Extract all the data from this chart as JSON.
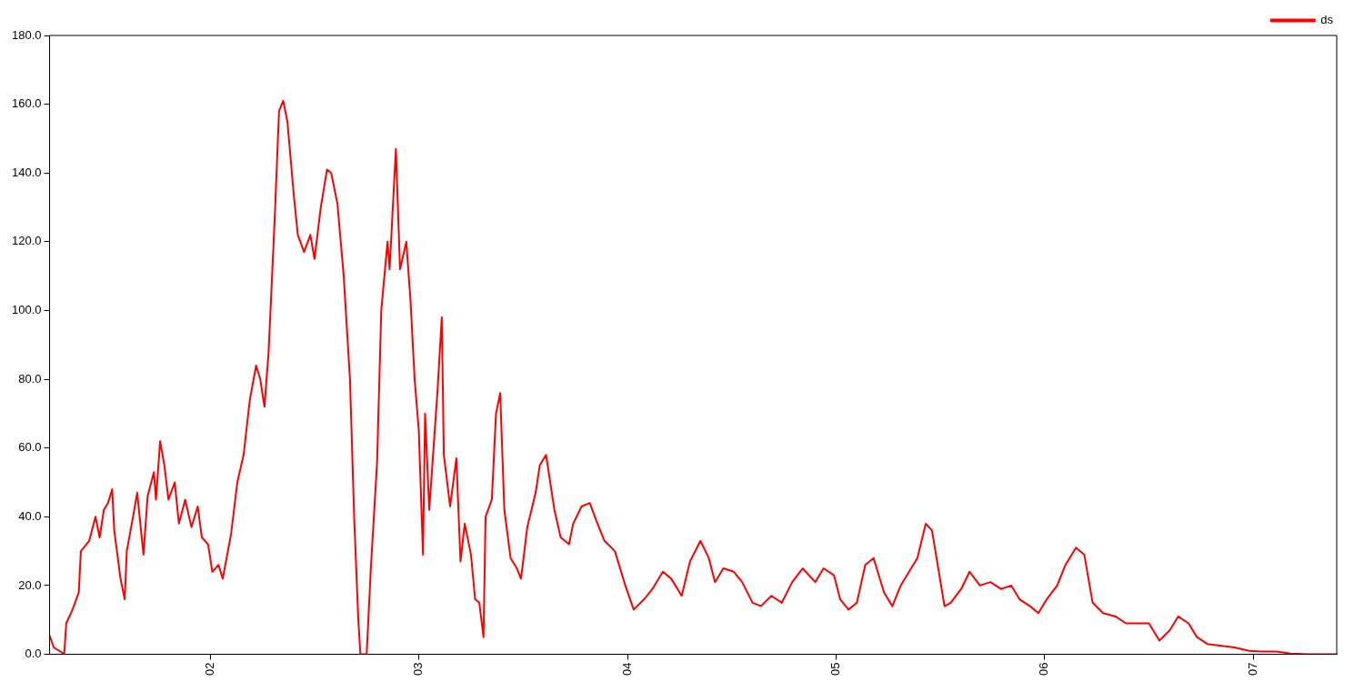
{
  "chart_data": {
    "type": "line",
    "legend": "top right",
    "grid": false,
    "marker": "none",
    "line_style": "solid",
    "xlim": [
      1.23,
      7.4
    ],
    "ylim": [
      0,
      180
    ],
    "xticks": [
      {
        "value": 2,
        "label": "02"
      },
      {
        "value": 3,
        "label": "03"
      },
      {
        "value": 4,
        "label": "04"
      },
      {
        "value": 5,
        "label": "05"
      },
      {
        "value": 6,
        "label": "06"
      },
      {
        "value": 7,
        "label": "07"
      }
    ],
    "yticks": [
      {
        "value": 0,
        "label": "0.0"
      },
      {
        "value": 20,
        "label": "20.0"
      },
      {
        "value": 40,
        "label": "40.0"
      },
      {
        "value": 60,
        "label": "60.0"
      },
      {
        "value": 80,
        "label": "80.0"
      },
      {
        "value": 100,
        "label": "100.0"
      },
      {
        "value": 120,
        "label": "120.0"
      },
      {
        "value": 140,
        "label": "140.0"
      },
      {
        "value": 160,
        "label": "160.0"
      },
      {
        "value": 180,
        "label": "180.0"
      }
    ],
    "x": [
      1.23,
      1.25,
      1.29,
      1.3,
      1.31,
      1.34,
      1.37,
      1.38,
      1.42,
      1.45,
      1.47,
      1.49,
      1.51,
      1.53,
      1.54,
      1.57,
      1.59,
      1.6,
      1.63,
      1.65,
      1.68,
      1.7,
      1.73,
      1.74,
      1.76,
      1.78,
      1.8,
      1.83,
      1.85,
      1.88,
      1.91,
      1.94,
      1.96,
      1.99,
      2.01,
      2.04,
      2.06,
      2.1,
      2.13,
      2.16,
      2.19,
      2.22,
      2.24,
      2.26,
      2.28,
      2.31,
      2.33,
      2.35,
      2.37,
      2.4,
      2.42,
      2.45,
      2.48,
      2.5,
      2.53,
      2.56,
      2.58,
      2.61,
      2.64,
      2.67,
      2.69,
      2.71,
      2.72,
      2.75,
      2.77,
      2.8,
      2.82,
      2.85,
      2.86,
      2.89,
      2.91,
      2.94,
      2.96,
      2.98,
      3.0,
      3.02,
      3.03,
      3.05,
      3.09,
      3.11,
      3.12,
      3.15,
      3.18,
      3.2,
      3.22,
      3.25,
      3.27,
      3.29,
      3.31,
      3.32,
      3.35,
      3.37,
      3.39,
      3.41,
      3.44,
      3.47,
      3.49,
      3.52,
      3.56,
      3.58,
      3.61,
      3.65,
      3.68,
      3.72,
      3.74,
      3.78,
      3.82,
      3.85,
      3.89,
      3.94,
      3.99,
      4.03,
      4.08,
      4.12,
      4.17,
      4.21,
      4.26,
      4.3,
      4.35,
      4.39,
      4.42,
      4.46,
      4.51,
      4.55,
      4.6,
      4.64,
      4.69,
      4.74,
      4.79,
      4.84,
      4.9,
      4.94,
      4.99,
      5.02,
      5.06,
      5.1,
      5.14,
      5.18,
      5.23,
      5.27,
      5.31,
      5.35,
      5.39,
      5.43,
      5.46,
      5.49,
      5.52,
      5.55,
      5.6,
      5.64,
      5.69,
      5.74,
      5.79,
      5.84,
      5.88,
      5.93,
      5.97,
      6.01,
      6.06,
      6.1,
      6.15,
      6.19,
      6.23,
      6.28,
      6.34,
      6.39,
      6.44,
      6.5,
      6.55,
      6.6,
      6.64,
      6.69,
      6.73,
      6.78,
      6.84,
      6.91,
      6.98,
      7.04,
      7.11,
      7.18,
      7.27,
      7.4
    ],
    "series": [
      {
        "name": "ds",
        "color": "#ff0000",
        "values": [
          5.5,
          2,
          0.5,
          0,
          9,
          13,
          18,
          30,
          33,
          40,
          34,
          42,
          44,
          48,
          36,
          22,
          16,
          30,
          40,
          47,
          29,
          46,
          53,
          45,
          62,
          55,
          45,
          50,
          38,
          45,
          37,
          43,
          34,
          32,
          24,
          26,
          22,
          35,
          50,
          58,
          74,
          84,
          80,
          72,
          88,
          128,
          158,
          161,
          155,
          134,
          122,
          117,
          122,
          115,
          130,
          141,
          140,
          131,
          110,
          80,
          40,
          10,
          0,
          0,
          25,
          56,
          100,
          120,
          112,
          147,
          112,
          120,
          103,
          80,
          65,
          29,
          70,
          42,
          77,
          98,
          58,
          43,
          57,
          27,
          38,
          29,
          16,
          15,
          5,
          40,
          45,
          70,
          76,
          42,
          28,
          25,
          22,
          37,
          47,
          55,
          58,
          42,
          34,
          32,
          38,
          43,
          44,
          39,
          33,
          30,
          20,
          13,
          16,
          19,
          24,
          22,
          17,
          27,
          33,
          28,
          21,
          25,
          24,
          21,
          15,
          14,
          17,
          15,
          21,
          25,
          21,
          25,
          23,
          16,
          13,
          15,
          26,
          28,
          18,
          14,
          20,
          24,
          28,
          38,
          36,
          25,
          14,
          15,
          19,
          24,
          20,
          21,
          19,
          20,
          16,
          14,
          12,
          16,
          20,
          26,
          31,
          29,
          15,
          12,
          11,
          9,
          9,
          9,
          4,
          7,
          11,
          9,
          5,
          3,
          2.5,
          2,
          1,
          0.8,
          0.8,
          0.2,
          0,
          0
        ]
      }
    ]
  }
}
